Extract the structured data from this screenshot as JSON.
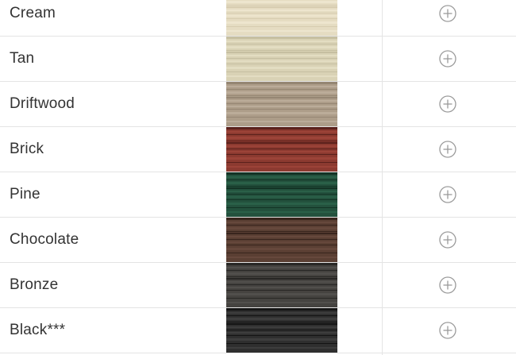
{
  "colors": [
    {
      "name": "Cream",
      "base": "#e5dcc2",
      "light": "#f1ebd6",
      "dark": "#d1c7aa"
    },
    {
      "name": "Tan",
      "base": "#d9d2b5",
      "light": "#e9e4cc",
      "dark": "#bfb89b"
    },
    {
      "name": "Driftwood",
      "base": "#ad9d89",
      "light": "#c4b6a3",
      "dark": "#8e7f6c"
    },
    {
      "name": "Brick",
      "base": "#8c3a30",
      "light": "#a74a3e",
      "dark": "#4a1a16"
    },
    {
      "name": "Pine",
      "base": "#23513d",
      "light": "#2e6a50",
      "dark": "#0f2a1e"
    },
    {
      "name": "Chocolate",
      "base": "#5a3f33",
      "light": "#6e4f42",
      "dark": "#2e1d17"
    },
    {
      "name": "Bronze",
      "base": "#454340",
      "light": "#5a5855",
      "dark": "#1f1e1c"
    },
    {
      "name": "Black***",
      "base": "#2f2f2f",
      "light": "#484848",
      "dark": "#0c0c0c"
    }
  ],
  "icons": {
    "add": "plus-circle-icon"
  },
  "styles": {
    "icon_color": "#9a9a9a",
    "divider_color": "#e4e4e4",
    "text_color": "#333333"
  }
}
